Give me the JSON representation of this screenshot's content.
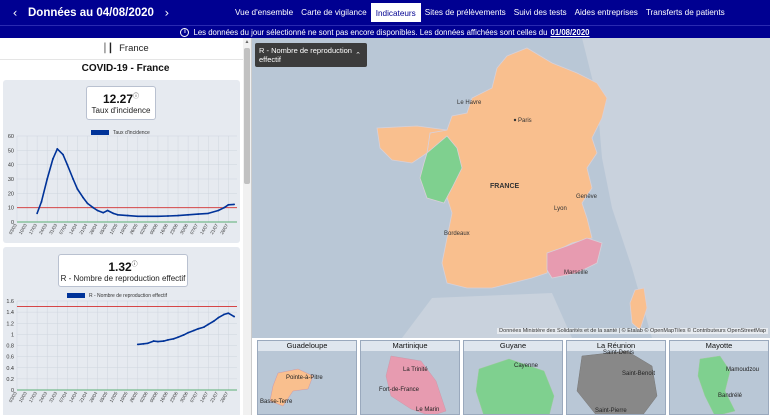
{
  "header": {
    "prev_icon": "chevron-left-icon",
    "title": "Données au 04/08/2020",
    "next_icon": "chevron-right-icon",
    "tabs": [
      "Vue d'ensemble",
      "Carte de vigilance",
      "Indicateurs",
      "Sites de prélèvements",
      "Suivi des tests",
      "Aides entreprises",
      "Transferts de patients"
    ],
    "active_tab": "Indicateurs"
  },
  "info": {
    "icon": "info-icon",
    "text": "Les données du jour sélectionné ne sont pas encore disponibles. Les données affichées sont celles du",
    "date": "01/08/2020"
  },
  "left": {
    "location": "France",
    "section_title": "COVID-19 - France",
    "indicators": [
      {
        "value": "12.27",
        "label": "Taux d'incidence",
        "legend": "Taux d'incidence",
        "threshold_color": "#d32f2f",
        "baseline_color": "#2e9e4f",
        "series_color": "#003399",
        "y_ticks": [
          "0",
          "10",
          "20",
          "30",
          "40",
          "50",
          "60"
        ],
        "x_ticks": [
          "03/03",
          "10/03",
          "17/03",
          "24/03",
          "31/03",
          "07/04",
          "14/04",
          "21/04",
          "28/04",
          "05/05",
          "12/05",
          "19/05",
          "26/05",
          "02/06",
          "09/06",
          "16/06",
          "23/06",
          "30/06",
          "07/07",
          "14/07",
          "21/07",
          "28/07"
        ]
      },
      {
        "value": "1.32",
        "label": "R - Nombre de reproduction effectif",
        "legend": "R - Nombre de reproduction effectif",
        "threshold_color": "#d32f2f",
        "baseline_color": "#2e9e4f",
        "series_color": "#003399",
        "y_ticks": [
          "0",
          "0.2",
          "0.4",
          "0.6",
          "0.8",
          "1",
          "1.2",
          "1.4",
          "1.6"
        ],
        "x_ticks": [
          "03/03",
          "10/03",
          "17/03",
          "24/03",
          "31/03",
          "07/04",
          "14/04",
          "21/04",
          "28/04",
          "05/05",
          "12/05",
          "19/05",
          "26/05",
          "02/06",
          "09/06",
          "16/06",
          "23/06",
          "30/06",
          "07/07",
          "14/07",
          "21/07",
          "28/07"
        ]
      }
    ]
  },
  "chart_data": [
    {
      "type": "line",
      "title": "Taux d'incidence",
      "series": [
        {
          "name": "Taux d'incidence",
          "x": [
            "17/03",
            "20/03",
            "24/03",
            "28/03",
            "31/03",
            "04/04",
            "07/04",
            "11/04",
            "14/04",
            "18/04",
            "21/04",
            "25/04",
            "28/04",
            "02/05",
            "05/05",
            "09/05",
            "12/05",
            "19/05",
            "26/05",
            "02/06",
            "09/06",
            "16/06",
            "23/06",
            "30/06",
            "07/07",
            "14/07",
            "21/07",
            "25/07",
            "28/07",
            "01/08"
          ],
          "values": [
            6,
            14,
            30,
            44,
            51,
            47,
            40,
            30,
            23,
            17,
            13,
            10,
            8,
            6.5,
            8,
            6,
            5,
            4.5,
            4,
            4,
            4,
            4.2,
            4.5,
            5,
            5.5,
            6,
            8,
            10,
            12,
            12.3
          ]
        }
      ],
      "ylim": [
        0,
        60
      ],
      "reference_lines": {
        "red": 10,
        "green": 0
      }
    },
    {
      "type": "line",
      "title": "R - Nombre de reproduction effectif",
      "series": [
        {
          "name": "R - Nombre de reproduction effectif",
          "x": [
            "26/05",
            "30/05",
            "02/06",
            "06/06",
            "09/06",
            "13/06",
            "16/06",
            "20/06",
            "23/06",
            "27/06",
            "30/06",
            "04/07",
            "07/07",
            "11/07",
            "14/07",
            "18/07",
            "21/07",
            "25/07",
            "28/07",
            "01/08"
          ],
          "values": [
            0.82,
            0.83,
            0.84,
            0.88,
            0.87,
            0.88,
            0.9,
            0.92,
            0.95,
            0.99,
            1.03,
            1.07,
            1.1,
            1.13,
            1.18,
            1.24,
            1.3,
            1.36,
            1.38,
            1.32
          ]
        }
      ],
      "ylim": [
        0,
        1.6
      ],
      "reference_lines": {
        "red": 1.5,
        "green": 0
      }
    }
  ],
  "map": {
    "legend_title": "R - Nombre de reproduction effectif",
    "legend_chevron": "chevron-up-icon",
    "country_label": "FRANCE",
    "cities": [
      "Le Havre",
      "Paris",
      "Bordeaux",
      "Lyon",
      "Genève",
      "Marseille"
    ],
    "colors": {
      "orange": "#f9bf8e",
      "green": "#7fd08f",
      "pink": "#e79bb0",
      "water": "#b9c7d6"
    },
    "attribution": "Données Ministère des Solidarités et de la santé | © Etalab © OpenMapTiles © Contributeurs OpenStreetMap"
  },
  "overseas": [
    {
      "name": "Guadeloupe",
      "labels": [
        "Pointe-à-Pitre",
        "Basse-Terre"
      ],
      "color": "#f9bf8e"
    },
    {
      "name": "Martinique",
      "labels": [
        "La Trinité",
        "Fort-de-France",
        "Le Marin"
      ],
      "color": "#e79bb0"
    },
    {
      "name": "Guyane",
      "labels": [
        "Cayenne"
      ],
      "color": "#7fd08f"
    },
    {
      "name": "La Réunion",
      "labels": [
        "Saint-Denis",
        "Saint-Benoît",
        "Saint-Pierre"
      ],
      "color": "#888888"
    },
    {
      "name": "Mayotte",
      "labels": [
        "Mamoudzou",
        "Bandrélé"
      ],
      "color": "#7fd08f"
    }
  ]
}
